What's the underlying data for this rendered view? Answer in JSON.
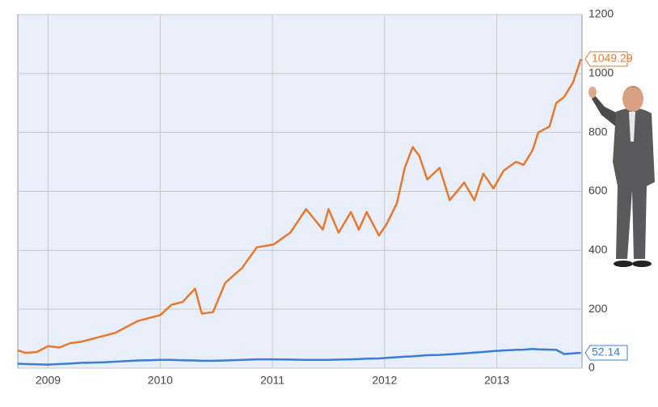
{
  "chart_data": {
    "type": "line",
    "x": [
      2008.73,
      2008.8,
      2008.9,
      2009.0,
      2009.1,
      2009.2,
      2009.3,
      2009.4,
      2009.5,
      2009.6,
      2009.7,
      2009.8,
      2009.9,
      2010.0,
      2010.1,
      2010.2,
      2010.31,
      2010.37,
      2010.47,
      2010.58,
      2010.73,
      2010.86,
      2011.01,
      2011.16,
      2011.3,
      2011.45,
      2011.5,
      2011.59,
      2011.7,
      2011.77,
      2011.84,
      2011.95,
      2012.02,
      2012.11,
      2012.18,
      2012.25,
      2012.31,
      2012.38,
      2012.49,
      2012.58,
      2012.71,
      2012.8,
      2012.88,
      2012.97,
      2013.06,
      2013.17,
      2013.24,
      2013.32,
      2013.37,
      2013.47,
      2013.53,
      2013.6,
      2013.68,
      2013.75
    ],
    "series": [
      {
        "color": "#e8782a",
        "values": [
          60,
          52,
          55,
          75,
          70,
          85,
          90,
          100,
          110,
          120,
          140,
          160,
          170,
          180,
          215,
          225,
          270,
          185,
          190,
          290,
          340,
          410,
          420,
          460,
          540,
          470,
          540,
          460,
          530,
          470,
          530,
          450,
          490,
          560,
          680,
          750,
          720,
          640,
          680,
          570,
          630,
          570,
          660,
          610,
          670,
          700,
          690,
          740,
          800,
          820,
          900,
          920,
          970,
          1049.29
        ]
      },
      {
        "color": "#3a7fd5",
        "values": [
          15,
          14,
          13,
          12,
          14,
          16,
          18,
          19,
          20,
          22,
          24,
          26,
          27,
          28,
          28,
          27,
          26,
          25,
          25,
          26,
          28,
          30,
          30,
          29,
          28,
          28,
          28,
          29,
          30,
          31,
          32,
          33,
          35,
          37,
          39,
          40,
          42,
          44,
          45,
          47,
          50,
          53,
          55,
          58,
          60,
          62,
          63,
          65,
          64,
          63,
          62,
          48,
          50,
          52.14
        ]
      }
    ],
    "xlim": [
      2008.73,
      2013.76
    ],
    "xticks": [
      2009,
      2010,
      2011,
      2012,
      2013
    ],
    "ylim": [
      0,
      1200
    ],
    "yticks": [
      0,
      200,
      400,
      600,
      800,
      1000,
      1200
    ],
    "grid": true
  }
}
